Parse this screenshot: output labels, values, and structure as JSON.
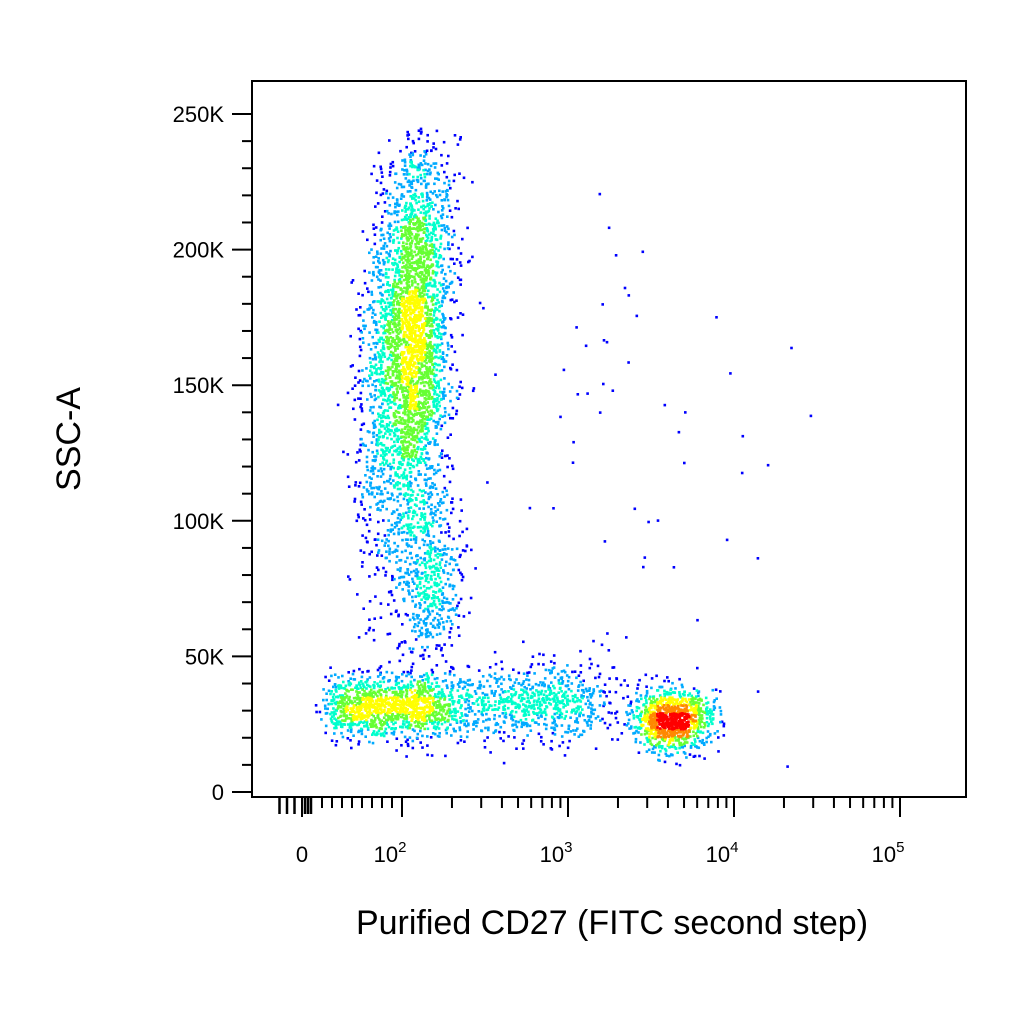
{
  "chart_data": {
    "type": "scatter",
    "subtype": "flow-cytometry-pseudocolor-density",
    "xlabel": "Purified CD27 (FITC second step)",
    "ylabel": "SSC-A",
    "x_scale": "biexponential",
    "y_scale": "linear",
    "xlim": [
      -20,
      150000
    ],
    "ylim": [
      0,
      260000
    ],
    "x_ticks": [
      {
        "value": 0,
        "label": "0"
      },
      {
        "value": 100,
        "base": "10",
        "exp": "2"
      },
      {
        "value": 1000,
        "base": "10",
        "exp": "3"
      },
      {
        "value": 10000,
        "base": "10",
        "exp": "4"
      },
      {
        "value": 100000,
        "base": "10",
        "exp": "5"
      }
    ],
    "y_ticks": [
      {
        "value": 0,
        "label": "0"
      },
      {
        "value": 50000,
        "label": "50K"
      },
      {
        "value": 100000,
        "label": "100K"
      },
      {
        "value": 150000,
        "label": "150K"
      },
      {
        "value": 200000,
        "label": "200K"
      },
      {
        "value": 250000,
        "label": "250K"
      }
    ],
    "grid": false,
    "legend": "none",
    "colormap": [
      "#0000ff",
      "#00aaff",
      "#00ffcc",
      "#66ff33",
      "#ffff00",
      "#ff8800",
      "#ff0000"
    ],
    "populations": [
      {
        "center_x": 110,
        "center_y": 165000,
        "spread_log_x": 0.12,
        "spread_y": 38000,
        "count": 3400,
        "tilt": 0.25
      },
      {
        "center_x": 145,
        "center_y": 80000,
        "spread_log_x": 0.1,
        "spread_y": 16000,
        "count": 500,
        "tilt": 0
      },
      {
        "center_x": 90,
        "center_y": 32000,
        "spread_log_x": 0.25,
        "spread_y": 6000,
        "count": 1300,
        "tilt": 0
      },
      {
        "center_x": 700,
        "center_y": 33000,
        "spread_log_x": 0.25,
        "spread_y": 7000,
        "count": 650,
        "tilt": 0
      },
      {
        "center_x": 4200,
        "center_y": 27000,
        "spread_log_x": 0.12,
        "spread_y": 5500,
        "count": 1000,
        "tilt": 0
      },
      {
        "center_x": 2500,
        "center_y": 120000,
        "spread_log_x": 0.5,
        "spread_y": 45000,
        "count": 60,
        "tilt": 0
      }
    ]
  }
}
